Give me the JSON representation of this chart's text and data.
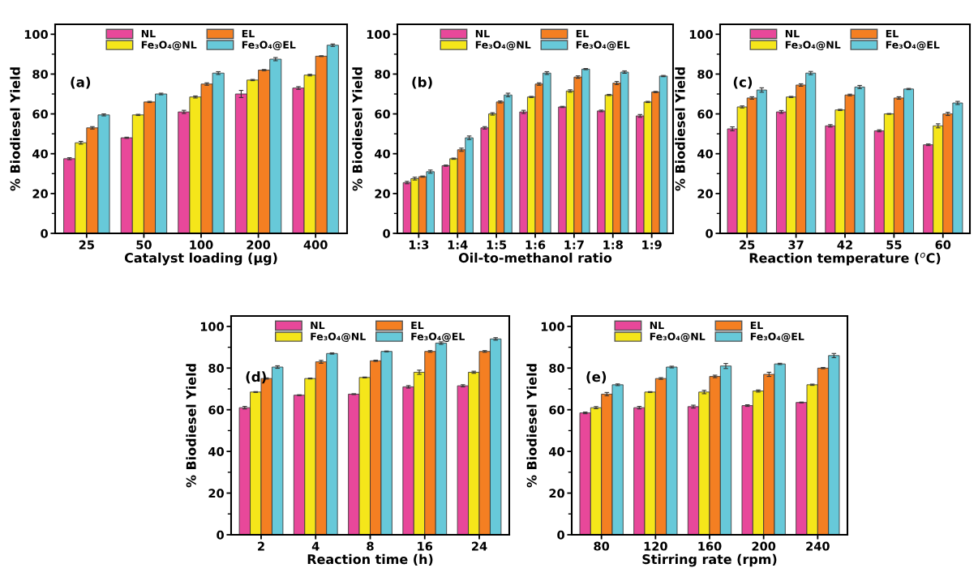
{
  "chart_data": [
    {
      "type": "bar",
      "xlabel": "Catalyst loading (μg)",
      "ylabel": "% Biodiesel Yield",
      "annotations": [
        "(a)"
      ],
      "categories": [
        "25",
        "50",
        "100",
        "200",
        "400"
      ],
      "ylim": [
        0,
        105
      ],
      "yticks": [
        0,
        20,
        40,
        60,
        80,
        100
      ],
      "legend": "top",
      "series": [
        {
          "name": "NL",
          "color": "#e8489a",
          "values": [
            37.5,
            48,
            61,
            70,
            73
          ],
          "errors": [
            0.5,
            0.3,
            0.8,
            1.8,
            0.7
          ]
        },
        {
          "name": "Fe₃O₄@NL",
          "color": "#f5e61a",
          "values": [
            45.5,
            59.5,
            68.5,
            77,
            79.5
          ],
          "errors": [
            0.7,
            0.3,
            0.5,
            0.3,
            0.4
          ]
        },
        {
          "name": "EL",
          "color": "#f47f22",
          "values": [
            53,
            66,
            75,
            82,
            89
          ],
          "errors": [
            0.6,
            0.3,
            0.6,
            0.3,
            0.2
          ]
        },
        {
          "name": "Fe₃O₄@EL",
          "color": "#67c9d9",
          "values": [
            59.5,
            70,
            80.5,
            87.5,
            94.5
          ],
          "errors": [
            0.5,
            0.4,
            0.7,
            0.8,
            0.6
          ]
        }
      ]
    },
    {
      "type": "bar",
      "xlabel": "Oil-to-methanol ratio",
      "ylabel": "% Biodiesel Yield",
      "annotations": [
        "(b)"
      ],
      "categories": [
        "1:3",
        "1:4",
        "1:5",
        "1:6",
        "1:7",
        "1:8",
        "1:9"
      ],
      "ylim": [
        0,
        105
      ],
      "yticks": [
        0,
        20,
        40,
        60,
        80,
        100
      ],
      "legend": "top",
      "series": [
        {
          "name": "NL",
          "color": "#e8489a",
          "values": [
            25.5,
            34,
            53,
            61,
            63.5,
            61.5,
            59
          ],
          "errors": [
            0.6,
            0.3,
            0.6,
            0.8,
            0.3,
            0.4,
            0.7
          ]
        },
        {
          "name": "Fe₃O₄@NL",
          "color": "#f5e61a",
          "values": [
            27.5,
            37.5,
            60,
            68.5,
            71.5,
            69.5,
            66
          ],
          "errors": [
            0.7,
            0.3,
            0.6,
            0.3,
            0.6,
            0.3,
            0.3
          ]
        },
        {
          "name": "EL",
          "color": "#f47f22",
          "values": [
            28.5,
            42,
            66,
            75,
            78.5,
            75.5,
            71
          ],
          "errors": [
            0.3,
            0.8,
            0.5,
            0.6,
            0.6,
            0.8,
            0.3
          ]
        },
        {
          "name": "Fe₃O₄@EL",
          "color": "#67c9d9",
          "values": [
            31,
            48,
            69.5,
            80.5,
            82.5,
            81,
            79
          ],
          "errors": [
            0.8,
            0.9,
            0.9,
            0.7,
            0.3,
            0.6,
            0.3
          ]
        }
      ]
    },
    {
      "type": "bar",
      "xlabel": "Reaction temperature ($^{o}$C)",
      "ylabel": "% Biodiesel Yield",
      "annotations": [
        "(c)"
      ],
      "categories": [
        "25",
        "37",
        "42",
        "55",
        "60"
      ],
      "ylim": [
        0,
        105
      ],
      "yticks": [
        0,
        20,
        40,
        60,
        80,
        100
      ],
      "legend": "top",
      "series": [
        {
          "name": "NL",
          "color": "#e8489a",
          "values": [
            52.5,
            61,
            54,
            51.5,
            44.5
          ],
          "errors": [
            1,
            0.7,
            0.6,
            0.5,
            0.4
          ]
        },
        {
          "name": "Fe₃O₄@NL",
          "color": "#f5e61a",
          "values": [
            63.5,
            68.5,
            62,
            60,
            54
          ],
          "errors": [
            0.5,
            0.3,
            0.3,
            0.2,
            1
          ]
        },
        {
          "name": "EL",
          "color": "#f47f22",
          "values": [
            68,
            74.5,
            69.5,
            68,
            60
          ],
          "errors": [
            0.6,
            0.6,
            0.4,
            0.6,
            0.8
          ]
        },
        {
          "name": "Fe₃O₄@EL",
          "color": "#67c9d9",
          "values": [
            72,
            80.5,
            73.5,
            72.5,
            65.5
          ],
          "errors": [
            1.1,
            0.8,
            0.8,
            0.3,
            0.8
          ]
        }
      ]
    },
    {
      "type": "bar",
      "xlabel": "Reaction time (h)",
      "ylabel": "% Biodiesel Yield",
      "annotations": [
        "(d)"
      ],
      "categories": [
        "2",
        "4",
        "8",
        "16",
        "24"
      ],
      "ylim": [
        0,
        105
      ],
      "yticks": [
        0,
        20,
        40,
        60,
        80,
        100
      ],
      "legend": "top",
      "series": [
        {
          "name": "NL",
          "color": "#e8489a",
          "values": [
            61,
            67,
            67.5,
            71,
            71.5
          ],
          "errors": [
            0.6,
            0.2,
            0.2,
            0.6,
            0.5
          ]
        },
        {
          "name": "Fe₃O₄@NL",
          "color": "#f5e61a",
          "values": [
            68.5,
            75,
            75.5,
            78,
            78
          ],
          "errors": [
            0.2,
            0.2,
            0.2,
            1,
            0.5
          ]
        },
        {
          "name": "EL",
          "color": "#f47f22",
          "values": [
            75,
            83,
            83.5,
            88,
            88
          ],
          "errors": [
            0.3,
            0.7,
            0.3,
            0.4,
            0.4
          ]
        },
        {
          "name": "Fe₃O₄@EL",
          "color": "#67c9d9",
          "values": [
            80.5,
            87,
            88,
            92,
            94
          ],
          "errors": [
            0.6,
            0.3,
            0.2,
            0.6,
            0.6
          ]
        }
      ]
    },
    {
      "type": "bar",
      "xlabel": "Stirring rate (rpm)",
      "ylabel": "% Biodiesel Yield",
      "annotations": [
        "(e)"
      ],
      "categories": [
        "80",
        "120",
        "160",
        "200",
        "240"
      ],
      "ylim": [
        0,
        105
      ],
      "yticks": [
        0,
        20,
        40,
        60,
        80,
        100
      ],
      "legend": "top",
      "series": [
        {
          "name": "NL",
          "color": "#e8489a",
          "values": [
            58.5,
            61,
            61.5,
            62,
            63.5
          ],
          "errors": [
            0.4,
            0.6,
            0.7,
            0.4,
            0.2
          ]
        },
        {
          "name": "Fe₃O₄@NL",
          "color": "#f5e61a",
          "values": [
            61,
            68.5,
            68.5,
            69,
            72
          ],
          "errors": [
            0.5,
            0.2,
            0.8,
            0.5,
            0.3
          ]
        },
        {
          "name": "EL",
          "color": "#f47f22",
          "values": [
            67.5,
            75,
            76,
            77,
            80
          ],
          "errors": [
            0.8,
            0.4,
            0.6,
            1,
            0.3
          ]
        },
        {
          "name": "Fe₃O₄@EL",
          "color": "#67c9d9",
          "values": [
            72,
            80.5,
            81,
            82,
            86
          ],
          "errors": [
            0.4,
            0.4,
            1.2,
            0.3,
            1
          ]
        }
      ]
    }
  ]
}
